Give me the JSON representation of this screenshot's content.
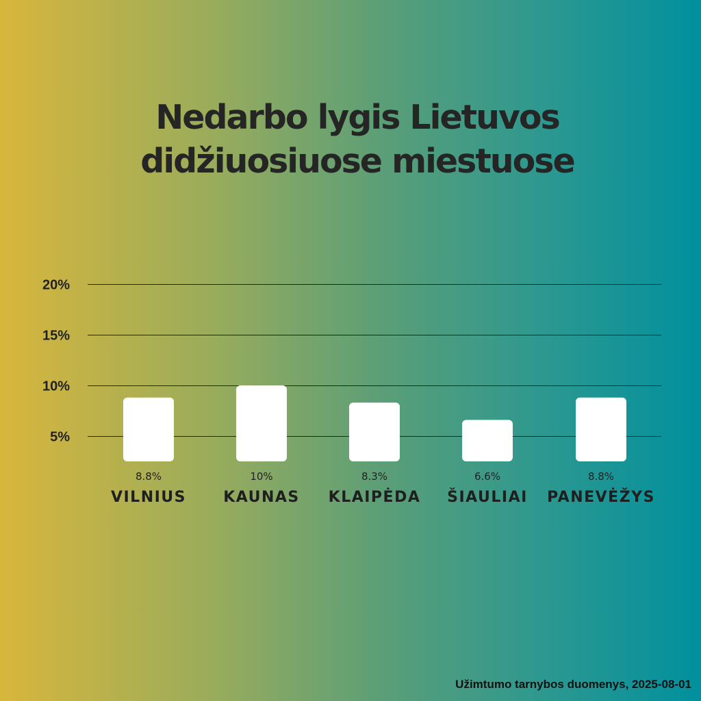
{
  "title_lines": [
    "Nedarbo lygis Lietuvos",
    "didžiuosiuose miestuose"
  ],
  "chart_data": {
    "type": "bar",
    "title": "Nedarbo lygis Lietuvos didžiuosiuose miestuose",
    "categories": [
      "VILNIUS",
      "KAUNAS",
      "KLAIPĖDA",
      "ŠIAULIAI",
      "PANEVĖŽYS"
    ],
    "values": [
      8.8,
      10,
      8.3,
      6.6,
      8.8
    ],
    "value_labels": [
      "8.8%",
      "10%",
      "8.3%",
      "6.6%",
      "8.8%"
    ],
    "y_ticks": [
      5,
      10,
      15,
      20
    ],
    "y_tick_labels": [
      "5%",
      "10%",
      "15%",
      "20%"
    ],
    "ylim": [
      0,
      20
    ],
    "xlabel": "",
    "ylabel": "",
    "grid": true,
    "bar_color": "#ffffff",
    "grid_color": "#222222"
  },
  "source": "Užimtumo tarnybos duomenys, 2025-08-01"
}
